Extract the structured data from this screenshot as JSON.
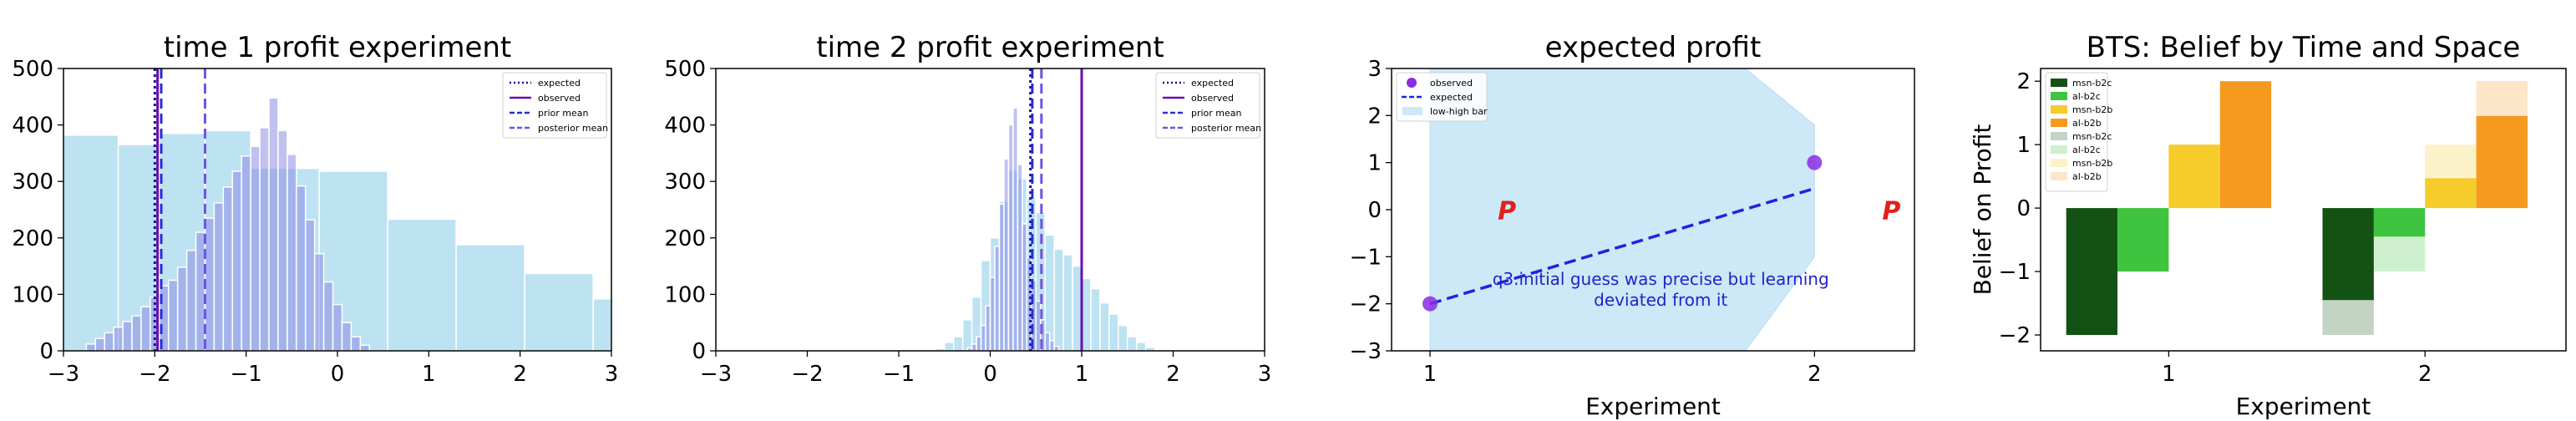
{
  "chart_data": [
    {
      "type": "histogram",
      "title": "time 1 profit experiment",
      "xlim": [
        -3,
        3
      ],
      "ylim": [
        0,
        500
      ],
      "xticks": [
        -3,
        -2,
        -1,
        0,
        1,
        2,
        3
      ],
      "xtick_labels": [
        "−3",
        "−2",
        "−1",
        "0",
        "1",
        "2",
        "3"
      ],
      "yticks": [
        0,
        100,
        200,
        300,
        400,
        500
      ],
      "ytick_labels": [
        "0",
        "100",
        "200",
        "300",
        "400",
        "500"
      ],
      "prior_hist": {
        "color": "#a7d8ee",
        "edges": [
          -3.0,
          -2.4,
          -1.95,
          -1.45,
          -0.95,
          -0.2,
          0.55,
          1.3,
          2.05,
          2.8,
          3.0
        ],
        "counts": [
          382,
          365,
          385,
          390,
          323,
          318,
          233,
          188,
          137,
          92
        ]
      },
      "posterior_hist": {
        "color": "#8c8ce6",
        "bin_width": 0.1,
        "start": -2.75,
        "counts": [
          12,
          22,
          32,
          42,
          52,
          62,
          78,
          95,
          115,
          125,
          148,
          178,
          210,
          235,
          262,
          290,
          318,
          345,
          362,
          395,
          448,
          390,
          348,
          292,
          232,
          172,
          122,
          82,
          50,
          25,
          10
        ]
      },
      "lines": [
        {
          "name": "expected",
          "x": -2.0,
          "color": "#1010a0",
          "style": "dotted"
        },
        {
          "name": "observed",
          "x": -1.97,
          "color": "#6a0dad",
          "style": "solid"
        },
        {
          "name": "prior mean",
          "x": -1.93,
          "color": "#2a2ad8",
          "style": "dashed"
        },
        {
          "name": "posterior mean",
          "x": -1.45,
          "color": "#6f54e0",
          "style": "dashed"
        }
      ],
      "legend_position": "top-right"
    },
    {
      "type": "histogram",
      "title": "time 2 profit experiment",
      "xlim": [
        -3,
        3
      ],
      "ylim": [
        0,
        500
      ],
      "xticks": [
        -3,
        -2,
        -1,
        0,
        1,
        2,
        3
      ],
      "xtick_labels": [
        "−3",
        "−2",
        "−1",
        "0",
        "1",
        "2",
        "3"
      ],
      "yticks": [
        0,
        100,
        200,
        300,
        400,
        500
      ],
      "ytick_labels": [
        "0",
        "100",
        "200",
        "300",
        "400",
        "500"
      ],
      "prior_hist": {
        "color": "#a7d8ee",
        "bin_width": 0.1,
        "start": -0.6,
        "counts": [
          4,
          15,
          25,
          55,
          95,
          160,
          200,
          265,
          320,
          305,
          270,
          245,
          205,
          180,
          170,
          150,
          128,
          110,
          85,
          65,
          45,
          25,
          15,
          6
        ]
      },
      "posterior_hist": {
        "color": "#8c8ce6",
        "bin_width": 0.05,
        "start": -0.25,
        "counts": [
          5,
          12,
          25,
          45,
          80,
          130,
          185,
          260,
          340,
          400,
          430,
          330,
          225,
          165,
          125,
          88,
          55,
          32,
          18,
          8
        ]
      },
      "lines": [
        {
          "name": "expected",
          "x": 0.44,
          "color": "#1010a0",
          "style": "dotted"
        },
        {
          "name": "observed",
          "x": 1.0,
          "color": "#6a0dad",
          "style": "solid"
        },
        {
          "name": "prior mean",
          "x": 0.46,
          "color": "#2a2ad8",
          "style": "dashed"
        },
        {
          "name": "posterior mean",
          "x": 0.56,
          "color": "#6f54e0",
          "style": "dashed"
        }
      ],
      "legend_position": "top-right"
    },
    {
      "type": "scatter",
      "title": "expected profit",
      "xlabel": "Experiment",
      "xlim": [
        0.9,
        2.26
      ],
      "ylim": [
        -3,
        3
      ],
      "xticks": [
        1,
        2
      ],
      "xtick_labels": [
        "1",
        "2"
      ],
      "yticks": [
        -3,
        -2,
        -1,
        0,
        1,
        2,
        3
      ],
      "ytick_labels": [
        "−3",
        "−2",
        "−1",
        "0",
        "1",
        "2",
        "3"
      ],
      "band": {
        "color": "#cde8f6",
        "x": [
          1,
          1.1,
          1.82,
          2.0
        ],
        "low": [
          -3.0,
          -3.0,
          -3.0,
          -1.0
        ],
        "high": [
          3.0,
          3.0,
          3.0,
          1.8
        ]
      },
      "observed": {
        "x": [
          1,
          2
        ],
        "y": [
          -2.0,
          1.0
        ],
        "color": "#8a2be2"
      },
      "expected": {
        "x": [
          1,
          2
        ],
        "y": [
          -2.0,
          0.45
        ],
        "color": "#2222dd"
      },
      "p_markers": [
        {
          "x": 1.2,
          "y": -0.2,
          "text": "P"
        },
        {
          "x": 2.2,
          "y": -0.2,
          "text": "P"
        }
      ],
      "annotation": {
        "lines": [
          "q3.initial guess was precise but learning",
          "deviated from it"
        ],
        "x": 1.6,
        "y": -1.6
      },
      "legend": [
        {
          "label": "observed",
          "kind": "dot"
        },
        {
          "label": "expected",
          "kind": "dash"
        },
        {
          "label": "low-high bar",
          "kind": "patch"
        }
      ],
      "legend_position": "top-left"
    },
    {
      "type": "bar",
      "title": "BTS: Belief by Time and Space",
      "xlabel": "Experiment",
      "ylabel": "Belief on Profit",
      "xlim": [
        0.5,
        2.55
      ],
      "ylim": [
        -2.25,
        2.2
      ],
      "xticks": [
        1,
        2
      ],
      "xtick_labels": [
        "1",
        "2"
      ],
      "yticks": [
        -2,
        -1,
        0,
        1,
        2
      ],
      "ytick_labels": [
        "−2",
        "−1",
        "0",
        "1",
        "2"
      ],
      "bar_width": 0.2,
      "series": [
        {
          "name": "msn-b2c",
          "color": "#145214",
          "alpha": 1,
          "x": [
            0.7
          ],
          "values": [
            -2.0
          ]
        },
        {
          "name": "al-b2c",
          "color": "#3ec43e",
          "alpha": 1,
          "x": [
            0.9
          ],
          "values": [
            -1.0
          ]
        },
        {
          "name": "msn-b2b",
          "color": "#f5cc2a",
          "alpha": 1,
          "x": [
            1.1
          ],
          "values": [
            1.0
          ]
        },
        {
          "name": "al-b2b",
          "color": "#f59a1f",
          "alpha": 1,
          "x": [
            1.3
          ],
          "values": [
            2.0
          ]
        },
        {
          "name": "msn-b2c",
          "color": "#145214",
          "alpha": 0.25,
          "x": [
            1.7
          ],
          "values": [
            -2.0
          ]
        },
        {
          "name": "al-b2c",
          "color": "#3ec43e",
          "alpha": 0.25,
          "x": [
            1.9
          ],
          "values": [
            -1.0
          ]
        },
        {
          "name": "msn-b2b",
          "color": "#f5cc2a",
          "alpha": 0.25,
          "x": [
            2.1
          ],
          "values": [
            1.0
          ]
        },
        {
          "name": "al-b2b",
          "color": "#f59a1f",
          "alpha": 0.25,
          "x": [
            2.3
          ],
          "values": [
            2.0
          ]
        },
        {
          "name": "",
          "color": "#145214",
          "alpha": 1,
          "x": [
            1.7
          ],
          "values": [
            -1.45
          ]
        },
        {
          "name": "",
          "color": "#3ec43e",
          "alpha": 1,
          "x": [
            1.9
          ],
          "values": [
            -0.45
          ]
        },
        {
          "name": "",
          "color": "#f5cc2a",
          "alpha": 1,
          "x": [
            2.1
          ],
          "values": [
            0.47
          ]
        },
        {
          "name": "",
          "color": "#f59a1f",
          "alpha": 1,
          "x": [
            2.3
          ],
          "values": [
            1.45
          ]
        }
      ],
      "legend_position": "top-left"
    }
  ]
}
